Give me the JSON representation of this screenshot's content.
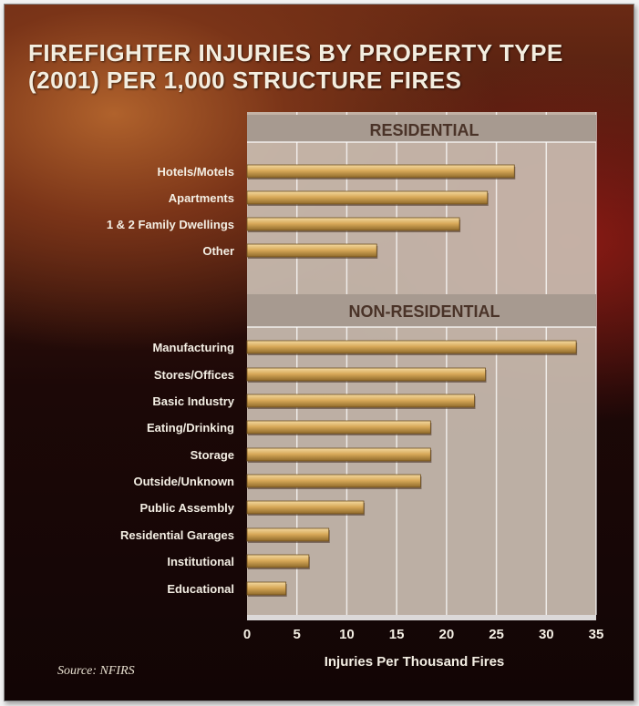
{
  "title": "FIREFIGHTER INJURIES BY PROPERTY TYPE (2001) PER 1,000 STRUCTURE FIRES",
  "source": "Source: NFIRS",
  "chart_data": {
    "type": "bar",
    "orientation": "horizontal",
    "xlabel": "Injuries Per Thousand Fires",
    "xlim": [
      0,
      35
    ],
    "xticks": [
      0,
      5,
      10,
      15,
      20,
      25,
      30,
      35
    ],
    "grid": true,
    "groups": [
      {
        "label": "RESIDENTIAL",
        "categories": [
          "Hotels/Motels",
          "Apartments",
          "1 & 2 Family Dwellings",
          "Other"
        ],
        "values": [
          26.8,
          24.1,
          21.3,
          13.0
        ]
      },
      {
        "label": "NON-RESIDENTIAL",
        "categories": [
          "Manufacturing",
          "Stores/Offices",
          "Basic Industry",
          "Eating/Drinking",
          "Storage",
          "Outside/Unknown",
          "Public Assembly",
          "Residential Garages",
          "Institutional",
          "Educational"
        ],
        "values": [
          33.0,
          23.9,
          22.8,
          18.4,
          18.4,
          17.4,
          11.7,
          8.2,
          6.2,
          3.9
        ]
      }
    ],
    "colors": {
      "bar": "#d9aa5a",
      "bar_dark": "#8f6a2a",
      "panel": "#c9bcb0",
      "section_band": "#a79a90",
      "grid": "#ffffff"
    }
  }
}
